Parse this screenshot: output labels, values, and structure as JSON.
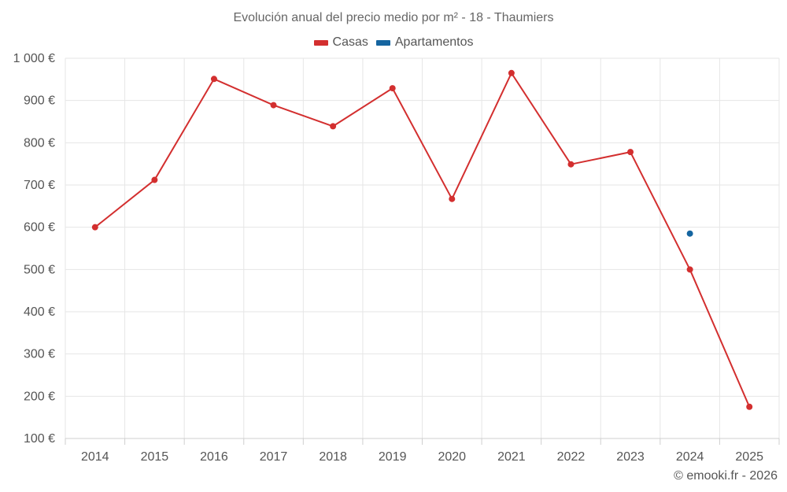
{
  "chart_data": {
    "type": "line",
    "title": "Evolución anual del precio medio por m² - 18 - Thaumiers",
    "categories": [
      "2014",
      "2015",
      "2016",
      "2017",
      "2018",
      "2019",
      "2020",
      "2021",
      "2022",
      "2023",
      "2024",
      "2025"
    ],
    "series": [
      {
        "name": "Casas",
        "color": "#d32f2f",
        "values": [
          600,
          712,
          951,
          889,
          839,
          929,
          667,
          965,
          749,
          778,
          500,
          175
        ]
      },
      {
        "name": "Apartamentos",
        "color": "#1565a0",
        "values": [
          null,
          null,
          null,
          null,
          null,
          null,
          null,
          null,
          null,
          null,
          585,
          null
        ]
      }
    ],
    "ylim": [
      100,
      1000
    ],
    "yticks": [
      100,
      200,
      300,
      400,
      500,
      600,
      700,
      800,
      900,
      1000
    ],
    "ytick_labels": [
      "100 €",
      "200 €",
      "300 €",
      "400 €",
      "500 €",
      "600 €",
      "700 €",
      "800 €",
      "900 €",
      "1 000 €"
    ],
    "xlabel": "",
    "ylabel": "",
    "grid": true,
    "legend_position": "top-center"
  },
  "credit": "© emooki.fr - 2026"
}
